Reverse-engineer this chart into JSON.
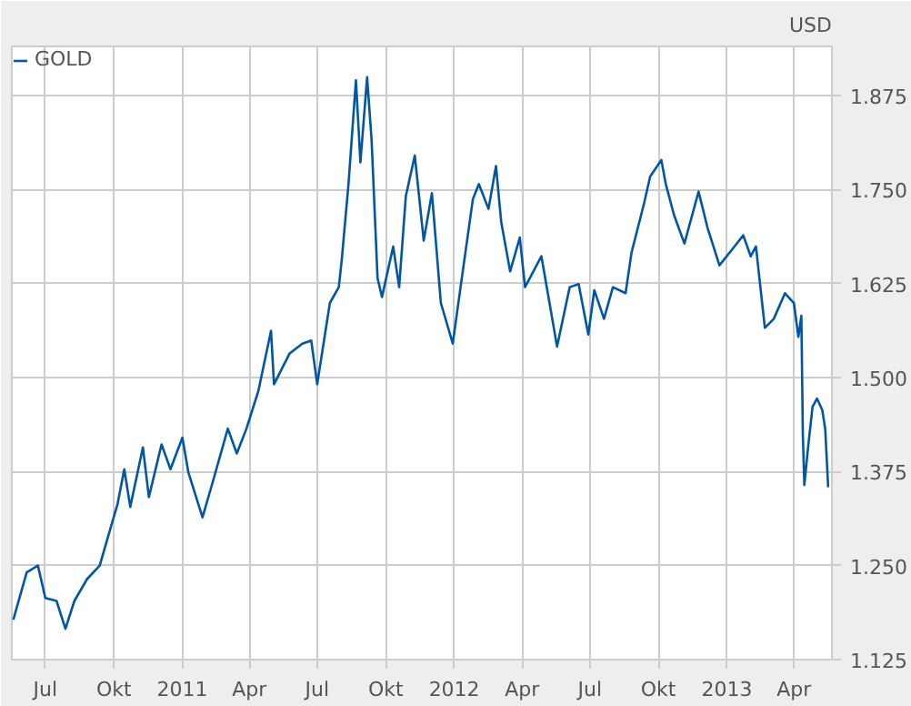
{
  "chart_data": {
    "type": "line",
    "ylabel": "USD",
    "x": [
      "2010-05-19",
      "2010-06-06",
      "2010-06-21",
      "2010-07-01",
      "2010-07-16",
      "2010-07-28",
      "2010-08-09",
      "2010-08-26",
      "2010-09-12",
      "2010-09-24",
      "2010-10-06",
      "2010-10-15",
      "2010-10-23",
      "2010-11-09",
      "2010-11-17",
      "2010-12-04",
      "2010-12-16",
      "2011-01-01",
      "2011-01-09",
      "2011-01-28",
      "2011-02-11",
      "2011-03-03",
      "2011-03-15",
      "2011-03-28",
      "2011-04-13",
      "2011-04-30",
      "2011-05-04",
      "2011-05-25",
      "2011-06-11",
      "2011-06-23",
      "2011-07-01",
      "2011-07-18",
      "2011-07-30",
      "2011-08-03",
      "2011-08-12",
      "2011-08-22",
      "2011-08-28",
      "2011-09-06",
      "2011-09-12",
      "2011-09-20",
      "2011-09-26",
      "2011-10-11",
      "2011-10-19",
      "2011-10-28",
      "2011-11-09",
      "2011-11-21",
      "2011-12-02",
      "2011-12-14",
      "2011-12-30",
      "2012-01-10",
      "2012-01-26",
      "2012-02-03",
      "2012-02-16",
      "2012-02-26",
      "2012-03-04",
      "2012-03-16",
      "2012-03-29",
      "2012-04-05",
      "2012-04-27",
      "2012-05-10",
      "2012-05-18",
      "2012-06-04",
      "2012-06-16",
      "2012-06-29",
      "2012-07-07",
      "2012-07-20",
      "2012-08-01",
      "2012-08-18",
      "2012-08-26",
      "2012-09-12",
      "2012-09-20",
      "2012-10-05",
      "2012-10-11",
      "2012-10-22",
      "2012-11-05",
      "2012-11-24",
      "2012-12-06",
      "2012-12-22",
      "2013-01-08",
      "2013-01-23",
      "2013-02-02",
      "2013-02-09",
      "2013-02-21",
      "2013-03-05",
      "2013-03-20",
      "2013-04-01",
      "2013-04-07",
      "2013-04-11",
      "2013-04-13",
      "2013-04-15",
      "2013-04-20",
      "2013-04-26",
      "2013-05-02",
      "2013-05-09",
      "2013-05-13",
      "2013-05-17"
    ],
    "series": [
      {
        "name": "GOLD",
        "color": "#0055a5",
        "values": [
          1178,
          1241,
          1250,
          1207,
          1203,
          1166,
          1203,
          1232,
          1250,
          1291,
          1332,
          1378,
          1328,
          1407,
          1341,
          1411,
          1378,
          1420,
          1374,
          1314,
          1362,
          1432,
          1399,
          1432,
          1482,
          1562,
          1491,
          1532,
          1545,
          1549,
          1491,
          1599,
          1620,
          1657,
          1757,
          1895,
          1786,
          1899,
          1816,
          1632,
          1607,
          1674,
          1620,
          1741,
          1795,
          1682,
          1745,
          1599,
          1545,
          1624,
          1737,
          1757,
          1724,
          1781,
          1707,
          1641,
          1686,
          1620,
          1661,
          1587,
          1541,
          1620,
          1624,
          1557,
          1616,
          1578,
          1620,
          1612,
          1666,
          1732,
          1767,
          1789,
          1757,
          1716,
          1678,
          1747,
          1699,
          1649,
          1670,
          1689,
          1661,
          1674,
          1566,
          1578,
          1612,
          1599,
          1554,
          1582,
          1424,
          1357,
          1407,
          1461,
          1472,
          1457,
          1432,
          1354
        ]
      }
    ],
    "xlim": [
      "2010-05-17",
      "2013-05-22"
    ],
    "xticks": [
      {
        "value": "2010-07-01",
        "label": "Jul"
      },
      {
        "value": "2010-10-01",
        "label": "Okt"
      },
      {
        "value": "2011-01-01",
        "label": "2011"
      },
      {
        "value": "2011-04-01",
        "label": "Apr"
      },
      {
        "value": "2011-07-01",
        "label": "Jul"
      },
      {
        "value": "2011-10-01",
        "label": "Okt"
      },
      {
        "value": "2012-01-01",
        "label": "2012"
      },
      {
        "value": "2012-04-01",
        "label": "Apr"
      },
      {
        "value": "2012-07-01",
        "label": "Jul"
      },
      {
        "value": "2012-10-01",
        "label": "Okt"
      },
      {
        "value": "2013-01-01",
        "label": "2013"
      },
      {
        "value": "2013-04-01",
        "label": "Apr"
      }
    ],
    "ylim": [
      1125,
      1940
    ],
    "yticks": [
      {
        "value": 1125,
        "label": "1.125"
      },
      {
        "value": 1250,
        "label": "1.250"
      },
      {
        "value": 1375,
        "label": "1.375"
      },
      {
        "value": 1500,
        "label": "1.500"
      },
      {
        "value": 1625,
        "label": "1.625"
      },
      {
        "value": 1750,
        "label": "1.750"
      },
      {
        "value": 1875,
        "label": "1.875"
      }
    ],
    "grid": true,
    "legend": "top left",
    "marker": "none",
    "line_style": "solid"
  }
}
